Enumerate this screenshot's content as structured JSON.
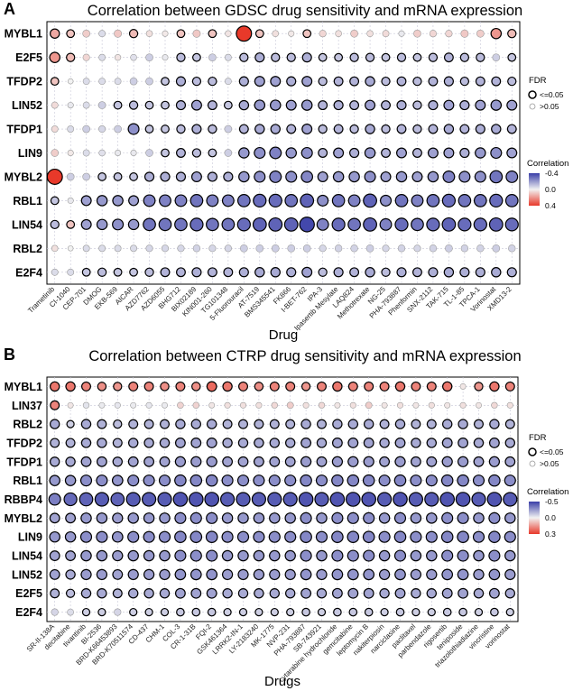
{
  "colors": {
    "positive": "#e8392a",
    "negative": "#3a3fa8",
    "neutral": "#f2f2f2",
    "grid": "#c8c8d8"
  },
  "chart_data": [
    {
      "type": "scatter",
      "panel": "A",
      "title": "Correlation between GDSC drug sensitivity and mRNA expression",
      "xlabel": "Drug",
      "ylabel": "",
      "genes": [
        "MYBL1",
        "E2F5",
        "TFDP2",
        "LIN52",
        "TFDP1",
        "LIN9",
        "MYBL2",
        "RBL1",
        "LIN54",
        "RBL2",
        "E2F4"
      ],
      "drugs": [
        "Trametinib",
        "CI-1040",
        "CEP-701",
        "DMOG",
        "EKB-569",
        "AICAR",
        "AZD7762",
        "AZD6055",
        "BHG712",
        "BIX02189",
        "KIN001-260",
        "TG101348",
        "5-Fluorouracil",
        "AT-7519",
        "BMS345541",
        "FK866",
        "I-BET-762",
        "IPA-3",
        "Ipasertib Mesylate",
        "LAQ824",
        "Methotrexate",
        "NG-25",
        "PHA-793887",
        "Phenformin",
        "SNX-2112",
        "TAK-715",
        "TL-1-85",
        "TPCA-1",
        "Vorinostat",
        "XMD13-2"
      ],
      "legend": {
        "fdr_title": "FDR",
        "fdr_sig": "<=0.05",
        "fdr_ns": ">0.05",
        "color_title": "Correlation",
        "color_ticks": [
          "-0.4",
          "0.0",
          "0.4"
        ],
        "color_range": [
          -0.4,
          0.4
        ]
      },
      "values": [
        [
          0.16,
          0.1,
          0.08,
          -0.05,
          0.09,
          0.12,
          0.04,
          0.02,
          0.1,
          0.09,
          0.1,
          0.03,
          0.4,
          0.1,
          0.04,
          0.02,
          0.1,
          0.06,
          0.04,
          0.08,
          0.04,
          0.05,
          -0.02,
          0.08,
          0.06,
          0.06,
          0.09,
          0.08,
          0.2,
          0.12
        ],
        [
          0.2,
          0.12,
          0.06,
          -0.05,
          0.03,
          -0.04,
          -0.08,
          -0.02,
          -0.12,
          -0.1,
          -0.08,
          -0.05,
          -0.12,
          -0.15,
          -0.12,
          -0.12,
          -0.15,
          -0.1,
          -0.1,
          -0.12,
          -0.12,
          -0.1,
          -0.12,
          -0.1,
          -0.12,
          -0.14,
          -0.12,
          -0.12,
          -0.08,
          -0.1
        ],
        [
          0.1,
          0.0,
          -0.05,
          -0.05,
          -0.05,
          -0.08,
          -0.08,
          -0.1,
          -0.15,
          -0.12,
          -0.12,
          -0.05,
          -0.15,
          -0.18,
          -0.18,
          -0.15,
          -0.18,
          -0.12,
          -0.14,
          -0.14,
          -0.16,
          -0.12,
          -0.14,
          -0.12,
          -0.14,
          -0.15,
          -0.12,
          -0.14,
          -0.14,
          -0.12
        ],
        [
          0.05,
          -0.02,
          -0.05,
          -0.08,
          -0.1,
          -0.12,
          -0.1,
          -0.1,
          -0.15,
          -0.18,
          -0.14,
          -0.1,
          -0.16,
          -0.2,
          -0.2,
          -0.18,
          -0.2,
          -0.14,
          -0.15,
          -0.14,
          -0.18,
          -0.14,
          -0.15,
          -0.12,
          -0.15,
          -0.18,
          -0.15,
          -0.18,
          -0.2,
          -0.18
        ],
        [
          0.05,
          -0.05,
          -0.08,
          -0.06,
          -0.08,
          -0.22,
          -0.1,
          -0.1,
          -0.12,
          -0.15,
          -0.12,
          -0.08,
          -0.14,
          -0.16,
          -0.16,
          -0.14,
          -0.18,
          -0.12,
          -0.14,
          -0.12,
          -0.16,
          -0.12,
          -0.14,
          -0.12,
          -0.14,
          -0.16,
          -0.14,
          -0.15,
          -0.16,
          -0.14
        ],
        [
          0.08,
          0.02,
          -0.05,
          -0.04,
          -0.02,
          -0.02,
          -0.08,
          -0.1,
          -0.14,
          -0.12,
          -0.1,
          -0.08,
          -0.2,
          -0.22,
          -0.25,
          -0.2,
          -0.22,
          -0.14,
          -0.18,
          -0.15,
          -0.2,
          -0.14,
          -0.18,
          -0.14,
          -0.18,
          -0.18,
          -0.15,
          -0.2,
          -0.22,
          -0.18
        ],
        [
          0.4,
          -0.08,
          -0.08,
          -0.1,
          -0.1,
          -0.1,
          -0.15,
          -0.15,
          -0.15,
          -0.18,
          -0.15,
          -0.15,
          -0.2,
          -0.22,
          -0.25,
          -0.22,
          -0.24,
          -0.18,
          -0.2,
          -0.2,
          -0.22,
          -0.18,
          -0.2,
          -0.18,
          -0.2,
          -0.25,
          -0.22,
          -0.22,
          -0.28,
          -0.25
        ],
        [
          -0.1,
          -0.02,
          -0.18,
          -0.2,
          -0.2,
          -0.18,
          -0.25,
          -0.25,
          -0.25,
          -0.28,
          -0.25,
          -0.25,
          -0.28,
          -0.3,
          -0.3,
          -0.28,
          -0.32,
          -0.22,
          -0.28,
          -0.25,
          -0.32,
          -0.22,
          -0.28,
          -0.25,
          -0.28,
          -0.3,
          -0.28,
          -0.28,
          -0.3,
          -0.28
        ],
        [
          -0.12,
          0.1,
          -0.18,
          -0.2,
          -0.22,
          -0.2,
          -0.28,
          -0.28,
          -0.28,
          -0.3,
          -0.28,
          -0.28,
          -0.3,
          -0.32,
          -0.32,
          -0.32,
          -0.38,
          -0.25,
          -0.3,
          -0.28,
          -0.32,
          -0.25,
          -0.3,
          -0.28,
          -0.3,
          -0.32,
          -0.3,
          -0.3,
          -0.32,
          -0.3
        ],
        [
          0.04,
          0.0,
          -0.05,
          -0.05,
          -0.05,
          -0.05,
          -0.06,
          -0.06,
          -0.06,
          -0.07,
          -0.06,
          -0.06,
          -0.08,
          -0.08,
          -0.08,
          -0.08,
          -0.08,
          -0.06,
          -0.07,
          -0.07,
          -0.08,
          -0.06,
          -0.07,
          -0.06,
          -0.07,
          -0.08,
          -0.07,
          -0.07,
          -0.08,
          -0.07
        ],
        [
          -0.05,
          -0.05,
          -0.1,
          -0.12,
          -0.1,
          -0.1,
          -0.12,
          -0.14,
          -0.14,
          -0.15,
          -0.14,
          -0.14,
          -0.15,
          -0.16,
          -0.16,
          -0.15,
          -0.18,
          -0.12,
          -0.15,
          -0.14,
          -0.16,
          -0.12,
          -0.15,
          -0.14,
          -0.15,
          -0.16,
          -0.15,
          -0.15,
          -0.16,
          -0.15
        ]
      ]
    },
    {
      "type": "scatter",
      "panel": "B",
      "title": "Correlation between CTRP drug sensitivity and mRNA expression",
      "xlabel": "Drugs",
      "ylabel": "",
      "genes": [
        "MYBL1",
        "LIN37",
        "RBL2",
        "TFDP2",
        "TFDP1",
        "RBL1",
        "RBBP4",
        "MYBL2",
        "LIN9",
        "LIN54",
        "LIN52",
        "E2F5",
        "E2F4"
      ],
      "drugs": [
        "SR-II-138A",
        "decitabine",
        "tivantinib",
        "BI-2536",
        "BRD-K66453893",
        "BRD-K70511574",
        "CD-437",
        "CHM-1",
        "COL-3",
        "CR-1-31B",
        "FQI-2",
        "GSK461364",
        "LRRK2-IN-1",
        "LY-2183240",
        "MK-1775",
        "NVP-231",
        "PHA-793887",
        "SB-743921",
        "cytarabine hydrochloride",
        "gemcitabine",
        "leptomycin B",
        "nakiterpiosin",
        "narciclasine",
        "paclitaxel",
        "parbendazole",
        "rigosertib",
        "teniposide",
        "triazolothiadiazine",
        "vincristine",
        "vorinostat"
      ],
      "legend": {
        "fdr_title": "FDR",
        "fdr_sig": "<=0.05",
        "fdr_ns": ">0.05",
        "color_title": "Correlation",
        "color_ticks": [
          "-0.5",
          "0.0",
          "0.3"
        ],
        "color_range": [
          -0.5,
          0.3
        ]
      },
      "values": [
        [
          0.2,
          0.2,
          0.18,
          0.16,
          0.15,
          0.18,
          0.18,
          0.16,
          0.18,
          0.16,
          0.22,
          0.2,
          0.18,
          0.16,
          0.18,
          0.18,
          0.15,
          0.18,
          0.2,
          0.18,
          0.18,
          0.18,
          0.2,
          0.18,
          0.18,
          0.2,
          0.02,
          0.15,
          0.2,
          0.18
        ],
        [
          0.18,
          0.02,
          -0.04,
          -0.02,
          -0.03,
          -0.02,
          -0.03,
          -0.02,
          0.05,
          0.05,
          0.02,
          0.03,
          0.03,
          0.03,
          0.04,
          0.06,
          0.03,
          0.04,
          0.02,
          0.03,
          0.06,
          0.02,
          0.03,
          0.02,
          0.03,
          0.02,
          0.03,
          0.02,
          0.04,
          0.03
        ],
        [
          -0.2,
          -0.1,
          -0.2,
          -0.18,
          -0.15,
          -0.18,
          -0.18,
          -0.18,
          -0.2,
          -0.2,
          -0.2,
          -0.18,
          -0.18,
          -0.18,
          -0.18,
          -0.18,
          -0.2,
          -0.18,
          -0.2,
          -0.2,
          -0.2,
          -0.18,
          -0.2,
          -0.18,
          -0.18,
          -0.2,
          -0.2,
          -0.18,
          -0.2,
          -0.18
        ],
        [
          -0.18,
          -0.18,
          -0.2,
          -0.2,
          -0.18,
          -0.2,
          -0.2,
          -0.2,
          -0.22,
          -0.22,
          -0.22,
          -0.2,
          -0.2,
          -0.2,
          -0.2,
          -0.2,
          -0.22,
          -0.2,
          -0.22,
          -0.22,
          -0.22,
          -0.2,
          -0.22,
          -0.2,
          -0.2,
          -0.22,
          -0.22,
          -0.2,
          -0.22,
          -0.2
        ],
        [
          -0.2,
          -0.2,
          -0.22,
          -0.22,
          -0.2,
          -0.22,
          -0.22,
          -0.22,
          -0.24,
          -0.24,
          -0.24,
          -0.22,
          -0.22,
          -0.22,
          -0.22,
          -0.22,
          -0.24,
          -0.22,
          -0.24,
          -0.24,
          -0.24,
          -0.22,
          -0.24,
          -0.22,
          -0.22,
          -0.24,
          -0.24,
          -0.22,
          -0.24,
          -0.22
        ],
        [
          -0.25,
          -0.25,
          -0.28,
          -0.28,
          -0.26,
          -0.28,
          -0.28,
          -0.28,
          -0.3,
          -0.3,
          -0.3,
          -0.28,
          -0.28,
          -0.28,
          -0.28,
          -0.28,
          -0.3,
          -0.28,
          -0.3,
          -0.3,
          -0.3,
          -0.28,
          -0.3,
          -0.28,
          -0.28,
          -0.3,
          -0.3,
          -0.28,
          -0.3,
          -0.28
        ],
        [
          -0.32,
          -0.38,
          -0.4,
          -0.42,
          -0.4,
          -0.42,
          -0.42,
          -0.42,
          -0.44,
          -0.44,
          -0.44,
          -0.42,
          -0.42,
          -0.42,
          -0.42,
          -0.42,
          -0.44,
          -0.42,
          -0.44,
          -0.44,
          -0.44,
          -0.42,
          -0.44,
          -0.42,
          -0.42,
          -0.44,
          -0.44,
          -0.42,
          -0.44,
          -0.42
        ],
        [
          -0.22,
          -0.22,
          -0.25,
          -0.25,
          -0.24,
          -0.25,
          -0.25,
          -0.25,
          -0.28,
          -0.28,
          -0.28,
          -0.25,
          -0.25,
          -0.25,
          -0.25,
          -0.25,
          -0.28,
          -0.25,
          -0.28,
          -0.28,
          -0.28,
          -0.25,
          -0.28,
          -0.25,
          -0.25,
          -0.28,
          -0.28,
          -0.25,
          -0.28,
          -0.25
        ],
        [
          -0.25,
          -0.25,
          -0.28,
          -0.28,
          -0.26,
          -0.28,
          -0.28,
          -0.28,
          -0.3,
          -0.3,
          -0.3,
          -0.28,
          -0.28,
          -0.28,
          -0.28,
          -0.28,
          -0.3,
          -0.28,
          -0.3,
          -0.3,
          -0.3,
          -0.28,
          -0.3,
          -0.28,
          -0.28,
          -0.3,
          -0.3,
          -0.28,
          -0.3,
          -0.28
        ],
        [
          -0.22,
          -0.22,
          -0.25,
          -0.25,
          -0.24,
          -0.25,
          -0.25,
          -0.25,
          -0.28,
          -0.28,
          -0.28,
          -0.25,
          -0.25,
          -0.25,
          -0.25,
          -0.25,
          -0.28,
          -0.25,
          -0.28,
          -0.28,
          -0.28,
          -0.25,
          -0.28,
          -0.25,
          -0.25,
          -0.28,
          -0.28,
          -0.25,
          -0.28,
          -0.25
        ],
        [
          -0.22,
          -0.2,
          -0.24,
          -0.24,
          -0.22,
          -0.24,
          -0.24,
          -0.24,
          -0.26,
          -0.26,
          -0.26,
          -0.24,
          -0.24,
          -0.24,
          -0.24,
          -0.24,
          -0.26,
          -0.24,
          -0.26,
          -0.26,
          -0.26,
          -0.24,
          -0.26,
          -0.24,
          -0.24,
          -0.26,
          -0.26,
          -0.24,
          -0.26,
          -0.24
        ],
        [
          -0.18,
          -0.15,
          -0.2,
          -0.2,
          -0.18,
          -0.2,
          -0.2,
          -0.2,
          -0.22,
          -0.22,
          -0.22,
          -0.2,
          -0.2,
          -0.2,
          -0.2,
          -0.2,
          -0.22,
          -0.2,
          -0.22,
          -0.22,
          -0.22,
          -0.2,
          -0.22,
          -0.2,
          -0.2,
          -0.22,
          -0.22,
          -0.2,
          -0.22,
          -0.2
        ],
        [
          -0.08,
          -0.06,
          -0.1,
          -0.1,
          -0.08,
          -0.1,
          -0.1,
          -0.1,
          -0.12,
          -0.12,
          -0.12,
          -0.1,
          -0.1,
          -0.1,
          -0.1,
          -0.1,
          -0.12,
          -0.1,
          -0.12,
          -0.12,
          -0.12,
          -0.1,
          -0.12,
          -0.1,
          -0.1,
          -0.12,
          -0.12,
          -0.1,
          -0.12,
          -0.1
        ]
      ]
    }
  ]
}
